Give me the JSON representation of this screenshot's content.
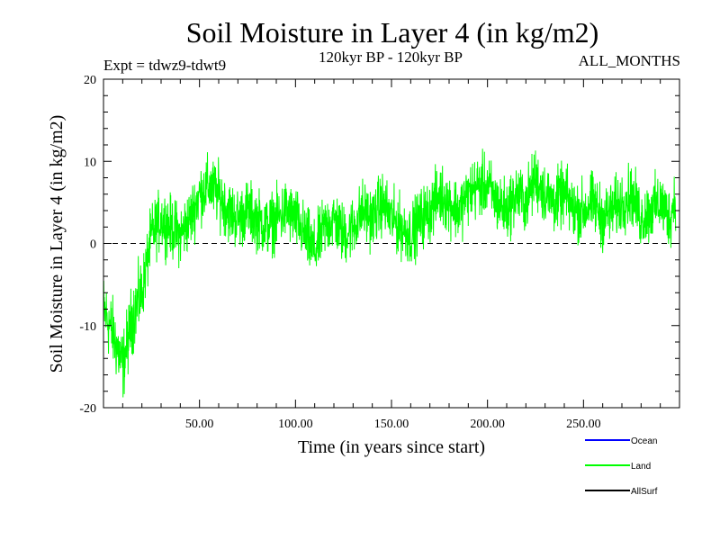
{
  "chart_data": {
    "type": "line",
    "title": "Soil Moisture in Layer 4 (in kg/m2)",
    "subtitle_left": "Expt = tdwz9-tdwt9",
    "subtitle_center": "120kyr BP - 120kyr BP",
    "subtitle_right": "ALL_MONTHS",
    "xlabel": "Time (in years since start)",
    "ylabel": "Soil Moisture in Layer 4 (in kg/m2)",
    "xlim": [
      0,
      300
    ],
    "ylim": [
      -20,
      20
    ],
    "x_ticks": [
      50,
      100,
      150,
      200,
      250
    ],
    "x_tick_labels": [
      "50.00",
      "100.00",
      "150.00",
      "200.00",
      "250.00"
    ],
    "y_ticks": [
      -20,
      -10,
      0,
      10,
      20
    ],
    "y_tick_labels": [
      "-20",
      "-10",
      "0",
      "10",
      "20"
    ],
    "zero_line": true,
    "legend_position": "bottom-right",
    "legend": [
      {
        "name": "Ocean",
        "color": "#0000ff"
      },
      {
        "name": "Land",
        "color": "#00ff00"
      },
      {
        "name": "AllSurf",
        "color": "#000000"
      }
    ],
    "series": [
      {
        "name": "Land",
        "color": "#00ff00",
        "x": [
          0,
          5,
          10,
          15,
          20,
          25,
          30,
          35,
          40,
          45,
          50,
          55,
          60,
          65,
          70,
          75,
          80,
          85,
          90,
          95,
          100,
          105,
          110,
          115,
          120,
          125,
          130,
          135,
          140,
          145,
          150,
          155,
          160,
          165,
          170,
          175,
          180,
          185,
          190,
          195,
          200,
          205,
          210,
          215,
          220,
          225,
          230,
          235,
          240,
          245,
          250,
          255,
          260,
          265,
          270,
          275,
          280,
          285,
          290,
          295,
          298
        ],
        "y": [
          -8,
          -11,
          -15,
          -9,
          -6,
          1,
          3,
          2,
          1,
          3,
          6,
          7,
          6,
          4,
          3,
          4,
          3,
          2,
          3,
          4,
          3,
          1,
          -1,
          2,
          3,
          1,
          2,
          4,
          3,
          5,
          3,
          2,
          1,
          3,
          4,
          6,
          5,
          4,
          6,
          7,
          7,
          5,
          4,
          6,
          5,
          8,
          6,
          5,
          6,
          4,
          4,
          5,
          3,
          4,
          5,
          6,
          3,
          4,
          5,
          3,
          6
        ]
      }
    ]
  }
}
